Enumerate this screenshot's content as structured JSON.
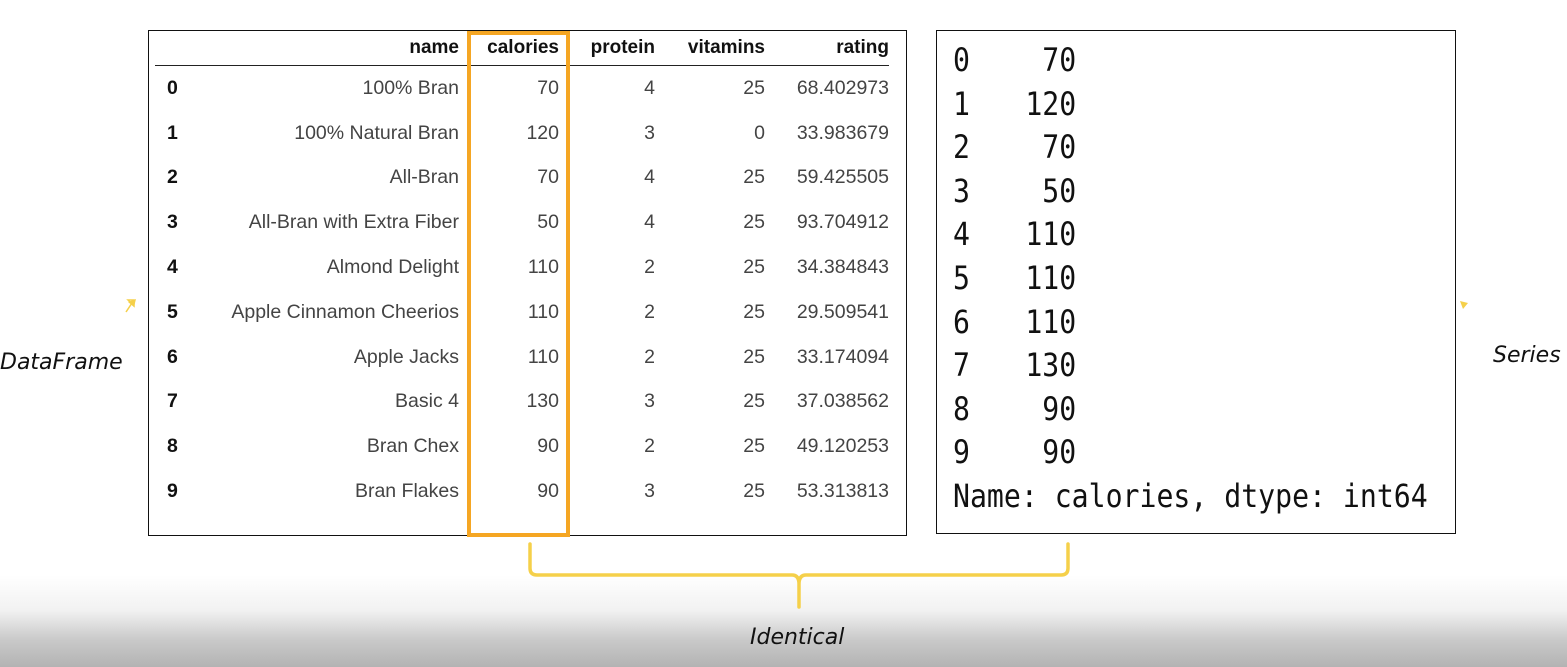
{
  "dataframe": {
    "columns": [
      "name",
      "calories",
      "protein",
      "vitamins",
      "rating"
    ],
    "rows": [
      {
        "index": "0",
        "name": "100% Bran",
        "calories": "70",
        "protein": "4",
        "vitamins": "25",
        "rating": "68.402973"
      },
      {
        "index": "1",
        "name": "100% Natural Bran",
        "calories": "120",
        "protein": "3",
        "vitamins": "0",
        "rating": "33.983679"
      },
      {
        "index": "2",
        "name": "All-Bran",
        "calories": "70",
        "protein": "4",
        "vitamins": "25",
        "rating": "59.425505"
      },
      {
        "index": "3",
        "name": "All-Bran with Extra Fiber",
        "calories": "50",
        "protein": "4",
        "vitamins": "25",
        "rating": "93.704912"
      },
      {
        "index": "4",
        "name": "Almond Delight",
        "calories": "110",
        "protein": "2",
        "vitamins": "25",
        "rating": "34.384843"
      },
      {
        "index": "5",
        "name": "Apple Cinnamon Cheerios",
        "calories": "110",
        "protein": "2",
        "vitamins": "25",
        "rating": "29.509541"
      },
      {
        "index": "6",
        "name": "Apple Jacks",
        "calories": "110",
        "protein": "2",
        "vitamins": "25",
        "rating": "33.174094"
      },
      {
        "index": "7",
        "name": "Basic 4",
        "calories": "130",
        "protein": "3",
        "vitamins": "25",
        "rating": "37.038562"
      },
      {
        "index": "8",
        "name": "Bran Chex",
        "calories": "90",
        "protein": "2",
        "vitamins": "25",
        "rating": "49.120253"
      },
      {
        "index": "9",
        "name": "Bran Flakes",
        "calories": "90",
        "protein": "3",
        "vitamins": "25",
        "rating": "53.313813"
      }
    ]
  },
  "series": {
    "items": [
      {
        "index": "0",
        "value": "70"
      },
      {
        "index": "1",
        "value": "120"
      },
      {
        "index": "2",
        "value": "70"
      },
      {
        "index": "3",
        "value": "50"
      },
      {
        "index": "4",
        "value": "110"
      },
      {
        "index": "5",
        "value": "110"
      },
      {
        "index": "6",
        "value": "110"
      },
      {
        "index": "7",
        "value": "130"
      },
      {
        "index": "8",
        "value": "90"
      },
      {
        "index": "9",
        "value": "90"
      }
    ],
    "footer": "Name: calories, dtype: int64"
  },
  "labels": {
    "dataframe": "DataFrame",
    "series": "Series",
    "identical": "Identical"
  },
  "colors": {
    "highlight": "#f5a623",
    "brace": "#f5d04a",
    "arrow": "#f5d04a"
  }
}
